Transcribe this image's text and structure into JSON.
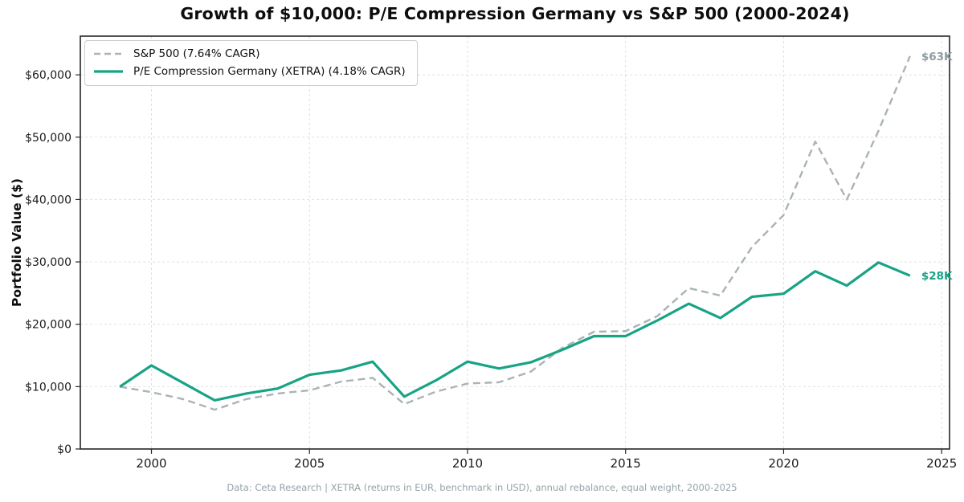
{
  "title": "Growth of $10,000: P/E Compression Germany vs S&P 500 (2000-2024)",
  "y_axis_label": "Portfolio Value ($)",
  "footer": "Data: Ceta Research | XETRA (returns in EUR, benchmark in USD), annual rebalance, equal weight, 2000-2025",
  "legend": [
    {
      "label": "S&P 500 (7.64% CAGR)"
    },
    {
      "label": "P/E Compression Germany (XETRA) (4.18% CAGR)"
    }
  ],
  "colors": {
    "sp500_line": "#aab3b5",
    "sp500_label": "#8d9da1",
    "germany_line": "#18a385",
    "germany_label": "#18a385",
    "gridline": "#dcdcdc",
    "spine": "#262626",
    "tick_text": "#1a1a1a",
    "footer_text": "#94a3a6"
  },
  "chart_data": {
    "type": "line",
    "title": "Growth of $10,000: P/E Compression Germany vs S&P 500 (2000-2024)",
    "xlabel": "",
    "ylabel": "Portfolio Value ($)",
    "grid": true,
    "legend_position": "upper left",
    "xlim": [
      1997.75,
      2025.25
    ],
    "ylim": [
      0,
      66200
    ],
    "x_ticks": [
      2000,
      2005,
      2010,
      2015,
      2020,
      2025
    ],
    "x_tick_labels": [
      "2000",
      "2005",
      "2010",
      "2015",
      "2020",
      "2025"
    ],
    "y_ticks": [
      0,
      10000,
      20000,
      30000,
      40000,
      50000,
      60000
    ],
    "y_tick_labels": [
      "$0",
      "$10,000",
      "$20,000",
      "$30,000",
      "$40,000",
      "$50,000",
      "$60,000"
    ],
    "x": [
      1999,
      2000,
      2001,
      2002,
      2003,
      2004,
      2005,
      2006,
      2007,
      2008,
      2009,
      2010,
      2011,
      2012,
      2013,
      2014,
      2015,
      2016,
      2017,
      2018,
      2019,
      2020,
      2021,
      2022,
      2023,
      2024
    ],
    "series": [
      {
        "key": "sp500",
        "name": "S&P 500 (7.64% CAGR)",
        "color": "#aab3b5",
        "dash": true,
        "width": 2.4,
        "values": [
          10000,
          9100,
          8000,
          6300,
          8000,
          8900,
          9400,
          10800,
          11400,
          7200,
          9200,
          10500,
          10700,
          12400,
          16200,
          18800,
          18900,
          21300,
          25800,
          24600,
          32400,
          37500,
          49300,
          40000,
          51000,
          63000
        ]
      },
      {
        "key": "germany",
        "name": "P/E Compression Germany (XETRA) (4.18% CAGR)",
        "color": "#18a385",
        "dash": false,
        "width": 3.2,
        "values": [
          10000,
          13400,
          10600,
          7800,
          8900,
          9700,
          11900,
          12600,
          14000,
          8400,
          11000,
          14000,
          12900,
          13900,
          15900,
          18100,
          18100,
          20600,
          23300,
          21000,
          24400,
          24900,
          28500,
          26200,
          29900,
          27800
        ]
      }
    ],
    "end_labels": [
      {
        "series_key": "sp500",
        "text": "$63K",
        "color": "#8d9da1"
      },
      {
        "series_key": "germany",
        "text": "$28K",
        "color": "#18a385"
      }
    ]
  }
}
